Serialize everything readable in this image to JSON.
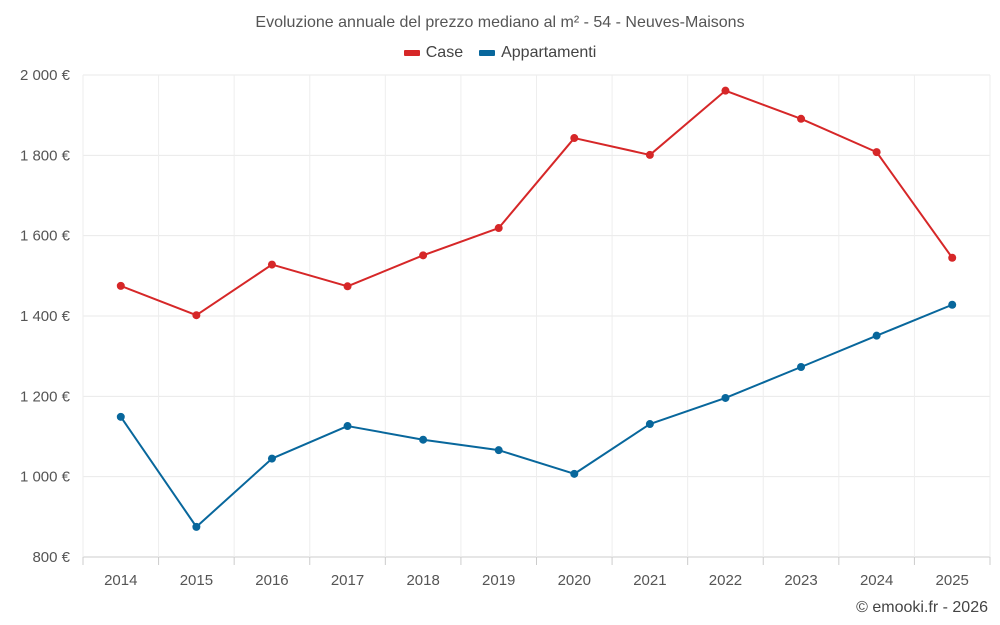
{
  "chart_data": {
    "type": "line",
    "title": "Evoluzione annuale del prezzo mediano al m² - 54 - Neuves-Maisons",
    "categories": [
      "2014",
      "2015",
      "2016",
      "2017",
      "2018",
      "2019",
      "2020",
      "2021",
      "2022",
      "2023",
      "2024",
      "2025"
    ],
    "series": [
      {
        "name": "Case",
        "color": "#d62728",
        "values": [
          1475,
          1402,
          1528,
          1474,
          1551,
          1619,
          1843,
          1801,
          1961,
          1891,
          1808,
          1545
        ]
      },
      {
        "name": "Appartamenti",
        "color": "#08679c",
        "values": [
          1149,
          875,
          1045,
          1126,
          1092,
          1066,
          1007,
          1131,
          1196,
          1273,
          1351,
          1428
        ]
      }
    ],
    "y_ticks": [
      800,
      1000,
      1200,
      1400,
      1600,
      1800,
      2000
    ],
    "y_tick_labels": [
      "800 €",
      "1 000 €",
      "1 200 €",
      "1 400 €",
      "1 600 €",
      "1 800 €",
      "2 000 €"
    ],
    "ylim": [
      800,
      2000
    ],
    "xlabel": "",
    "ylabel": "",
    "grid": true,
    "legend_position": "top-center"
  },
  "footer": {
    "credit": "© emooki.fr - 2026"
  }
}
